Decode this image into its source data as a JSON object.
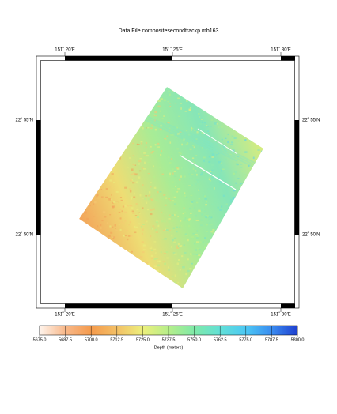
{
  "title": "Data File compositesecondtrackp.mb163",
  "map": {
    "x_labels": [
      "151˚ 20'E",
      "151˚ 25'E",
      "151˚ 30'E"
    ],
    "y_labels": [
      "22˚ 55'N",
      "22˚ 50'N"
    ]
  },
  "colorbar": {
    "label": "Depth (meters)",
    "clim": [
      5675,
      5800
    ],
    "ticks": [
      {
        "value": 5675,
        "label": "5675.0"
      },
      {
        "value": 5687.5,
        "label": "5687.5"
      },
      {
        "value": 5700,
        "label": "5700.0"
      },
      {
        "value": 5712.5,
        "label": "5712.5"
      },
      {
        "value": 5725,
        "label": "5725.0"
      },
      {
        "value": 5737.5,
        "label": "5737.5"
      },
      {
        "value": 5750,
        "label": "5750.0"
      },
      {
        "value": 5762.5,
        "label": "5762.5"
      },
      {
        "value": 5775,
        "label": "5775.0"
      },
      {
        "value": 5787.5,
        "label": "5787.5"
      },
      {
        "value": 5800,
        "label": "5800.0"
      }
    ],
    "colors": [
      "#fff4ec",
      "#f8b88a",
      "#f49a4c",
      "#f3c066",
      "#ecef7c",
      "#b6ee8a",
      "#7fe9a8",
      "#62e0d6",
      "#4cc8f4",
      "#3a8cf0",
      "#1e3fcf"
    ]
  }
}
